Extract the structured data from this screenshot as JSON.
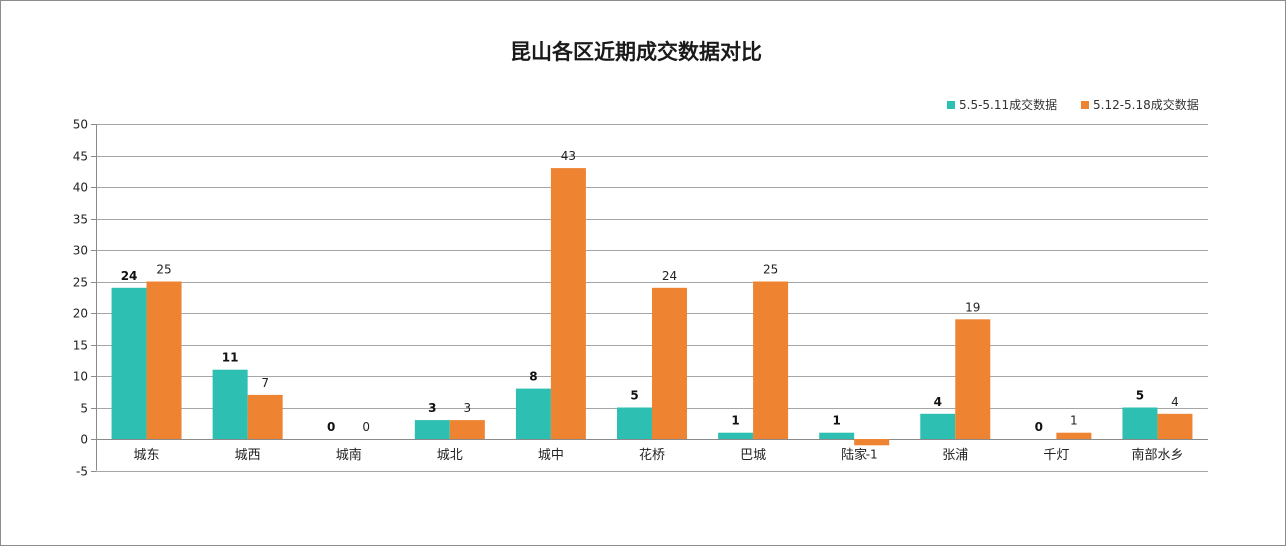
{
  "chart_data": {
    "type": "bar",
    "title": "昆山各区近期成交数据对比",
    "xlabel": "",
    "ylabel": "",
    "categories": [
      "城东",
      "城西",
      "城南",
      "城北",
      "城中",
      "花桥",
      "巴城",
      "陆家",
      "张浦",
      "千灯",
      "南部水乡"
    ],
    "series": [
      {
        "name": "5.5-5.11成交数据",
        "color": "#2EBFB3",
        "values": [
          24,
          11,
          0,
          3,
          8,
          5,
          1,
          1,
          4,
          0,
          5
        ]
      },
      {
        "name": "5.12-5.18成交数据",
        "color": "#EE8432",
        "values": [
          25,
          7,
          0,
          3,
          43,
          24,
          25,
          -1,
          19,
          1,
          4
        ]
      }
    ],
    "ylim": [
      -5,
      50
    ],
    "yticks": [
      -5,
      0,
      5,
      10,
      15,
      20,
      25,
      30,
      35,
      40,
      45,
      50
    ],
    "grid": true,
    "legend_position": "top-right"
  }
}
